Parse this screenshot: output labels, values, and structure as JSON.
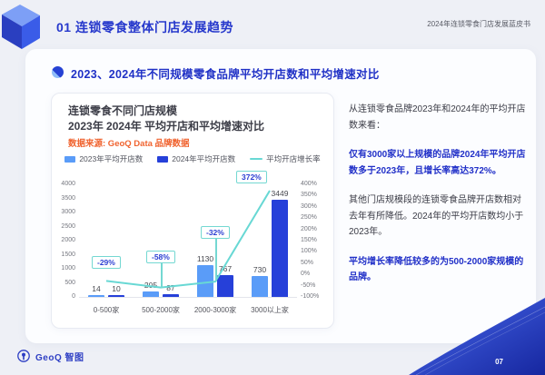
{
  "header": {
    "section_title": "01 连锁零食整体门店发展趋势",
    "doc_title": "2024年连锁零食门店发展蓝皮书"
  },
  "section": {
    "title": "2023、2024年不同规模零食品牌平均开店数和平均增速对比"
  },
  "chart_card": {
    "title_line1": "连锁零食不同门店规模",
    "title_line2": "2023年 2024年 平均开店和平均增速对比",
    "source": "数据来源: GeoQ Data 品牌数据"
  },
  "chart_data": {
    "type": "bar",
    "subtype": "grouped-bars-with-line",
    "title": "连锁零食不同门店规模 2023年 2024年 平均开店和平均增速对比",
    "categories": [
      "0-500家",
      "500-2000家",
      "2000-3000家",
      "3000以上家"
    ],
    "series": [
      {
        "name": "2023年平均开店数",
        "type": "bar",
        "color": "#5a9cf8",
        "values": [
          14,
          205,
          1130,
          730
        ]
      },
      {
        "name": "2024年平均开店数",
        "type": "bar",
        "color": "#2640d9",
        "values": [
          10,
          87,
          767,
          3449
        ]
      },
      {
        "name": "平均开店增长率",
        "type": "line",
        "color": "#68d8d4",
        "values_pct": [
          -29,
          -58,
          -32,
          372
        ]
      }
    ],
    "left_axis": {
      "min": 0,
      "max": 4000,
      "step": 500
    },
    "right_axis": {
      "min": -100,
      "max": 400,
      "step": 50,
      "suffix": "%"
    },
    "legend_position": "top",
    "grid": false
  },
  "insights": {
    "p1": "从连锁零食品牌2023年和2024年的平均开店数来看：",
    "p2": "仅有3000家以上规模的品牌2024年平均开店数多于2023年，且增长率高达372%。",
    "p3": "其他门店规模段的连锁零食品牌开店数相对去年有所降低。2024年的平均开店数均小于2023年。",
    "p4": "平均增长率降低较多的为500-2000家规模的品牌。"
  },
  "footer": {
    "logo_text": "GeoQ 智图",
    "page_number": "07"
  },
  "colors": {
    "accent_blue": "#2638cc",
    "bar_2023": "#5a9cf8",
    "bar_2024": "#2640d9",
    "growth_line": "#68d8d4",
    "source_orange": "#f0632f",
    "corner_gradient_start": "#4a6cf0",
    "corner_gradient_end": "#16269f"
  }
}
